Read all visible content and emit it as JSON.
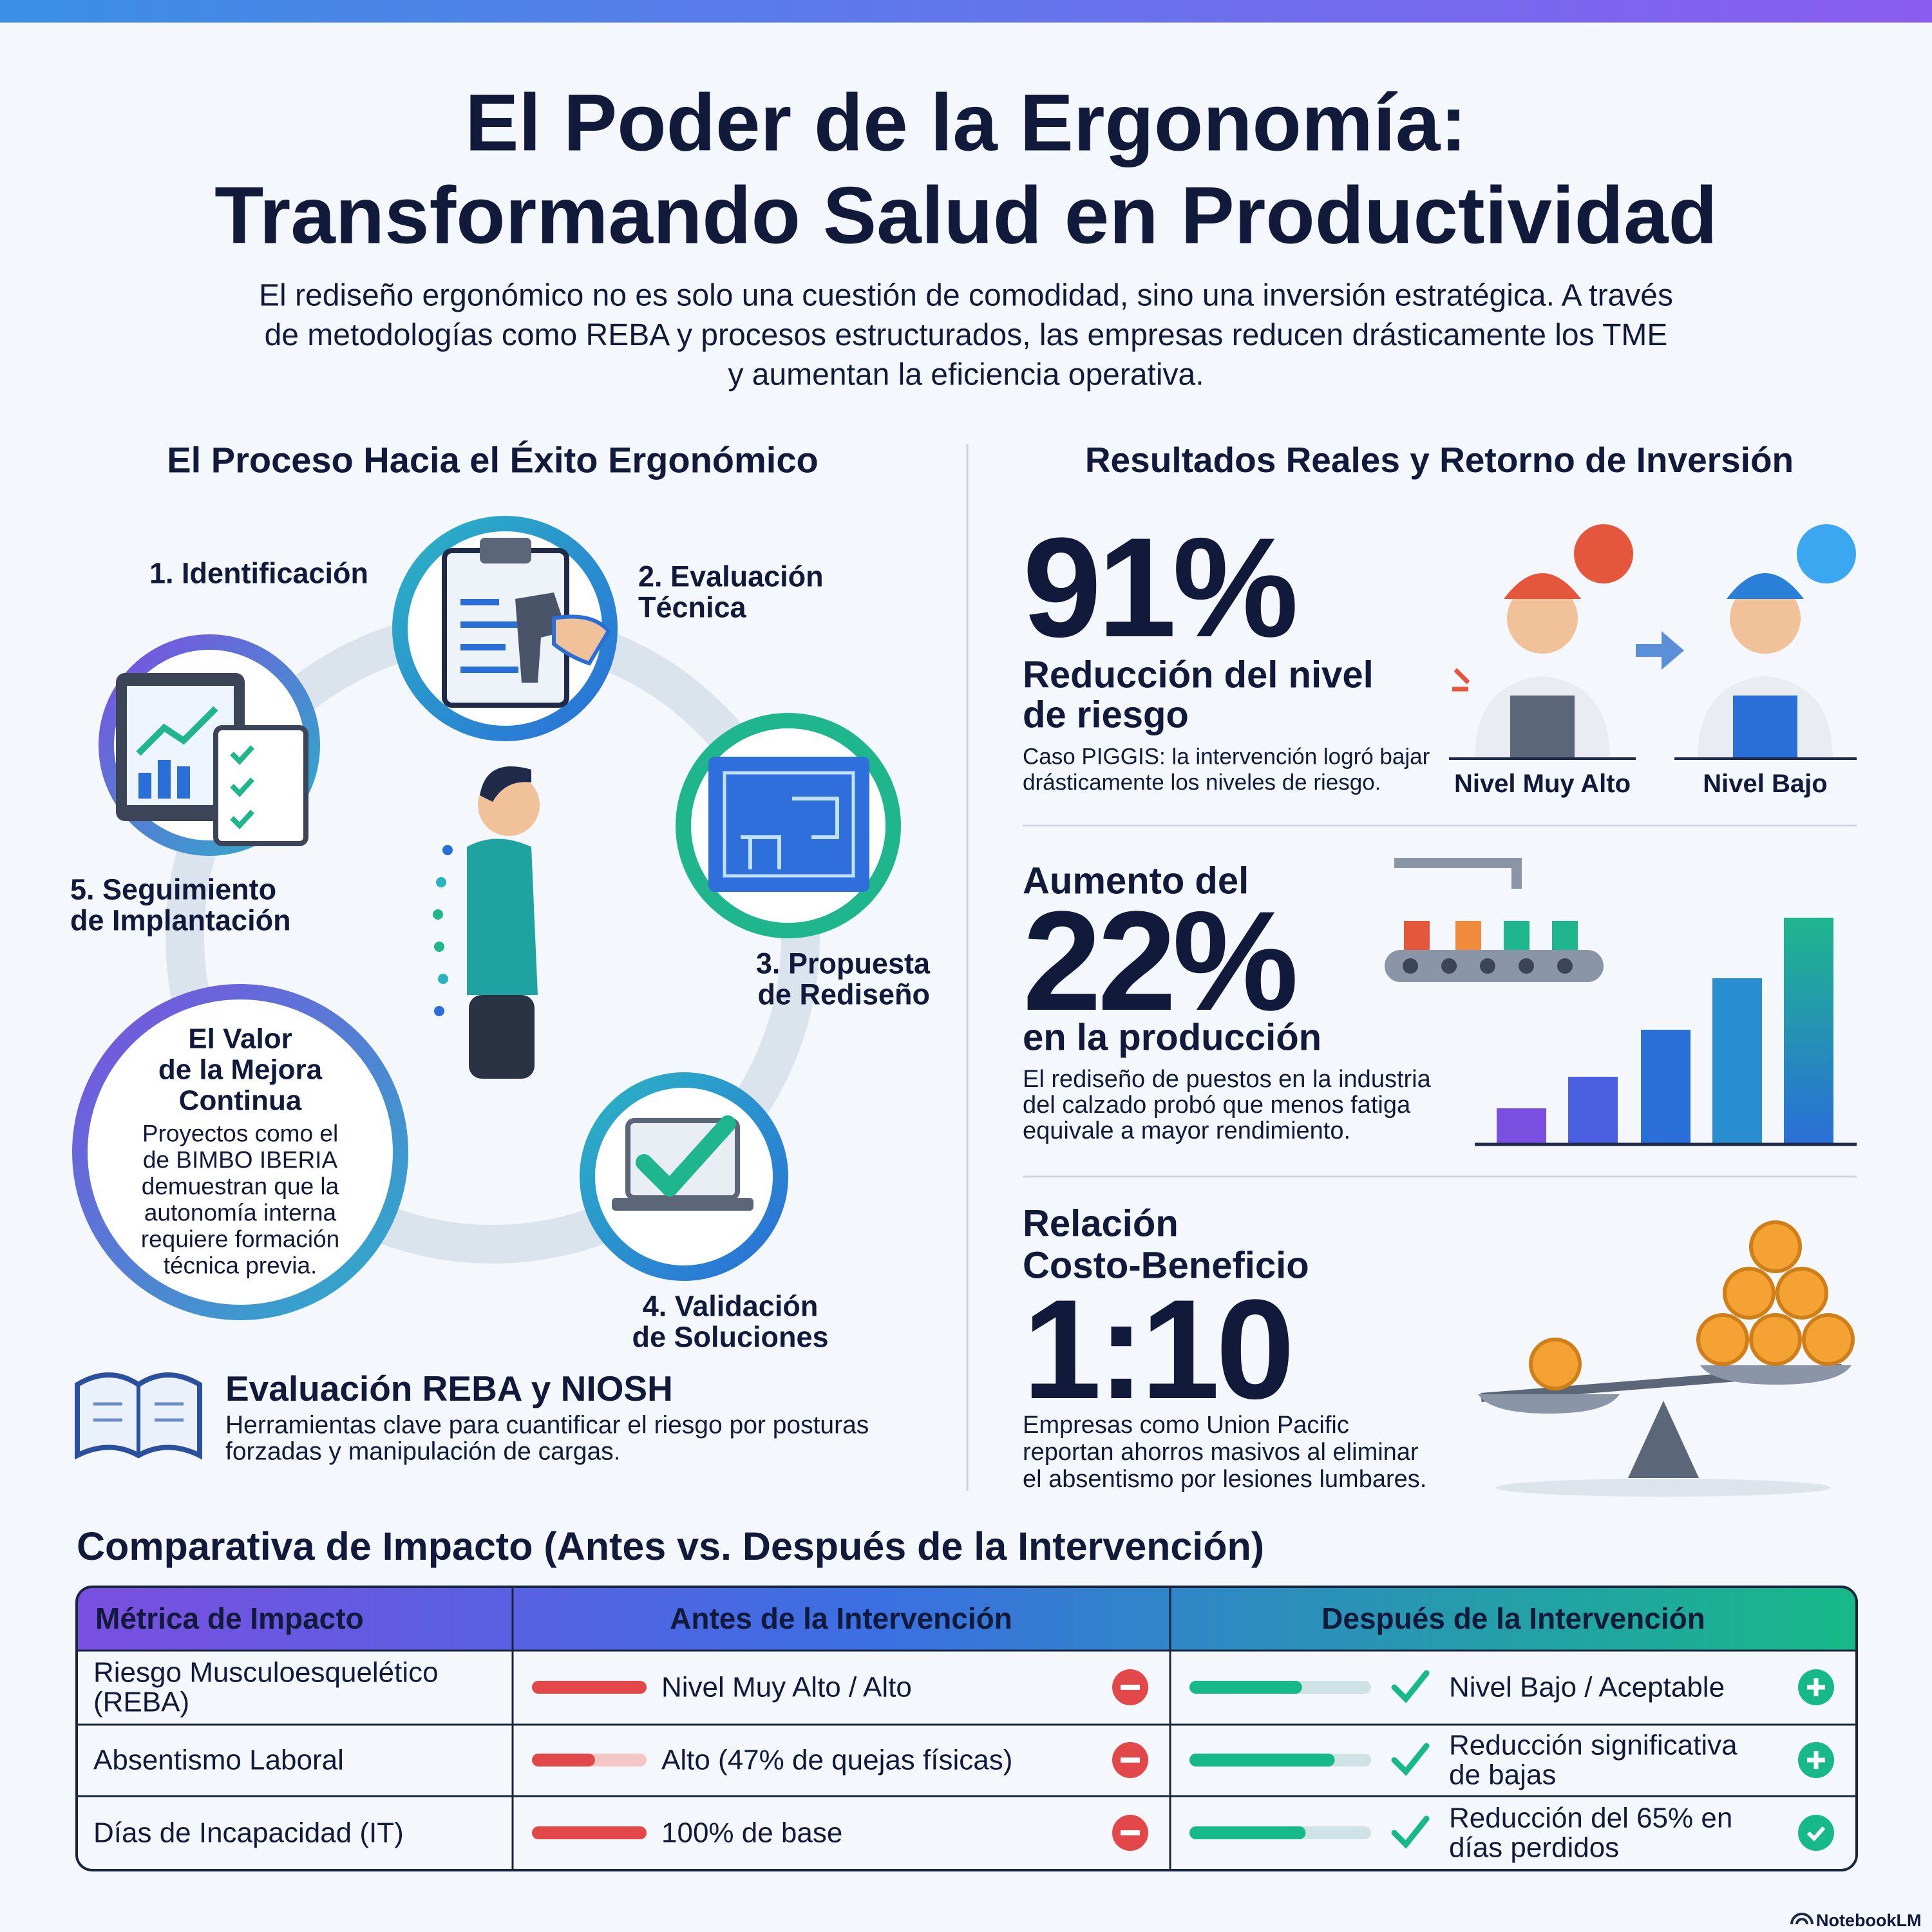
{
  "header": {
    "title": [
      "El Poder de la Ergonomía:",
      "Transformando Salud en Productividad"
    ],
    "subtitle": [
      "El rediseño ergonómico no es solo una cuestión de comodidad, sino una inversión estratégica. A través",
      "de metodologías como REBA y procesos estructurados, las empresas reducen drásticamente los TME",
      "y aumentan la eficiencia operativa."
    ]
  },
  "process": {
    "heading": "El Proceso Hacia el Éxito Ergonómico",
    "steps": [
      [
        "1. Identificación"
      ],
      [
        "2. Evaluación",
        "Técnica"
      ],
      [
        "3. Propuesta",
        "de Rediseño"
      ],
      [
        "4. Validación",
        "de Soluciones"
      ],
      [
        "5. Seguimiento",
        "de Implantación"
      ]
    ],
    "value_box": {
      "title": [
        "El Valor",
        "de la Mejora",
        "Continua"
      ],
      "body": [
        "Proyectos como el",
        "de BIMBO IBERIA",
        "demuestran que la",
        "autonomía interna",
        "requiere formación",
        "técnica previa."
      ]
    },
    "tools": {
      "title": "Evaluación REBA y NIOSH",
      "body": [
        "Herramientas clave para cuantificar el riesgo por posturas",
        "forzadas y manipulación de cargas."
      ]
    }
  },
  "results": {
    "heading": "Resultados Reales y Retorno de Inversión",
    "risk": {
      "stat": "91%",
      "title": [
        "Reducción del nivel",
        "de riesgo"
      ],
      "body": [
        "Caso PIGGIS: la intervención logró bajar",
        "drásticamente los niveles de riesgo."
      ],
      "before": "Nivel Muy Alto",
      "after": "Nivel Bajo"
    },
    "production": {
      "intro": "Aumento del",
      "stat": "22%",
      "title": "en la producción",
      "body": [
        "El rediseño de puestos en la industria",
        "del calzado probó que menos fatiga",
        "equivale a mayor rendimiento."
      ]
    },
    "cost_benefit": {
      "title": [
        "Relación",
        "Costo-Beneficio"
      ],
      "stat": "1:10",
      "body": [
        "Empresas como Union Pacific",
        "reportan ahorros masivos al eliminar",
        "el absentismo por lesiones lumbares."
      ]
    }
  },
  "table": {
    "title": "Comparativa de Impacto (Antes vs. Después de la Intervención)",
    "columns": [
      "Métrica de Impacto",
      "Antes de la Intervención",
      "Después de la Intervención"
    ],
    "rows": [
      {
        "metric": [
          "Riesgo Musculoesquelético",
          "(REBA)"
        ],
        "before": "Nivel Muy Alto / Alto",
        "after": [
          "Nivel Bajo / Aceptable"
        ]
      },
      {
        "metric": [
          "Absentismo Laboral"
        ],
        "before": "Alto (47% de quejas físicas)",
        "after": [
          "Reducción significativa",
          "de bajas"
        ]
      },
      {
        "metric": [
          "Días de Incapacidad (IT)"
        ],
        "before": "100% de base",
        "after": [
          "Reducción del 65% en",
          "días perdidos"
        ]
      }
    ]
  },
  "footer": {
    "brand": "NotebookLM"
  }
}
